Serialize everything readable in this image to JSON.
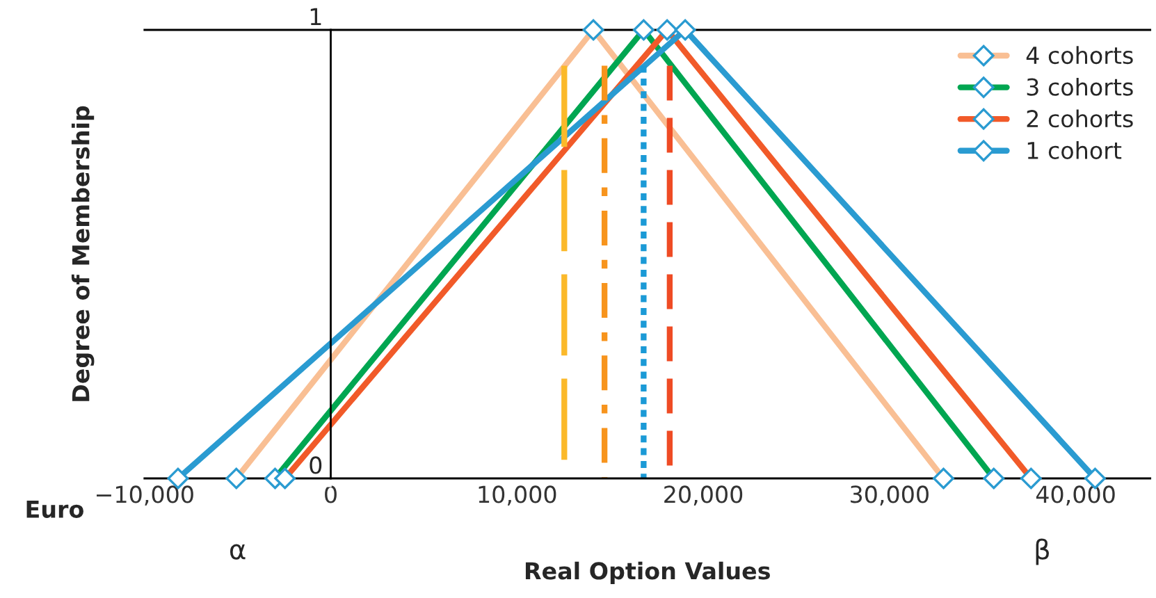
{
  "chart_data": {
    "type": "line",
    "xlabel": "Real Option Values",
    "ylabel": "Degree of Membership",
    "xlim": [
      -10000,
      44000
    ],
    "ylim": [
      0,
      1
    ],
    "xticks": [
      {
        "value": -10000,
        "label": "−10,000"
      },
      {
        "value": 0,
        "label": "0"
      },
      {
        "value": 10000,
        "label": "10,000"
      },
      {
        "value": 20000,
        "label": "20,000"
      },
      {
        "value": 30000,
        "label": "30,000"
      },
      {
        "value": 40000,
        "label": "40,000"
      }
    ],
    "yticks": [
      0,
      1
    ],
    "grid": false,
    "legend": "top right",
    "marker": "diamond",
    "series": [
      {
        "name": "4 cohorts",
        "color": "#f9bf94",
        "x": [
          -5070,
          14100,
          32900
        ],
        "values": [
          0,
          1,
          0
        ]
      },
      {
        "name": "3 cohorts",
        "color": "#00a651",
        "x": [
          -2990,
          16800,
          35600
        ],
        "values": [
          0,
          1,
          0
        ]
      },
      {
        "name": "2 cohorts",
        "color": "#f15a29",
        "x": [
          -2460,
          18060,
          37600
        ],
        "values": [
          0,
          1,
          0
        ]
      },
      {
        "name": "1 cohort",
        "color": "#2a9bd1",
        "x": [
          -8200,
          19030,
          41040
        ],
        "values": [
          0,
          1,
          0
        ]
      },
      {
        "color": "#fbb92a",
        "x": [
          12540,
          12540
        ],
        "values": [
          0,
          0.92
        ],
        "line_style": "longdash",
        "marker": "none"
      },
      {
        "color": "#f7941d",
        "x": [
          14700,
          14700
        ],
        "values": [
          0,
          0.92
        ],
        "line_style": "dashdot",
        "marker": "none"
      },
      {
        "color": "#1b9ad6",
        "x": [
          16800,
          16800
        ],
        "values": [
          0,
          0.92
        ],
        "line_style": "dotted",
        "marker": "none"
      },
      {
        "color": "#ef4b24",
        "x": [
          18200,
          18200
        ],
        "values": [
          0,
          0.92
        ],
        "line_style": "dashed",
        "marker": "none"
      }
    ],
    "annotations": [
      "Euro",
      {
        "text": "α",
        "x": -5000,
        "y": 0
      },
      {
        "text": "β",
        "x": 38200,
        "y": 0
      }
    ]
  }
}
